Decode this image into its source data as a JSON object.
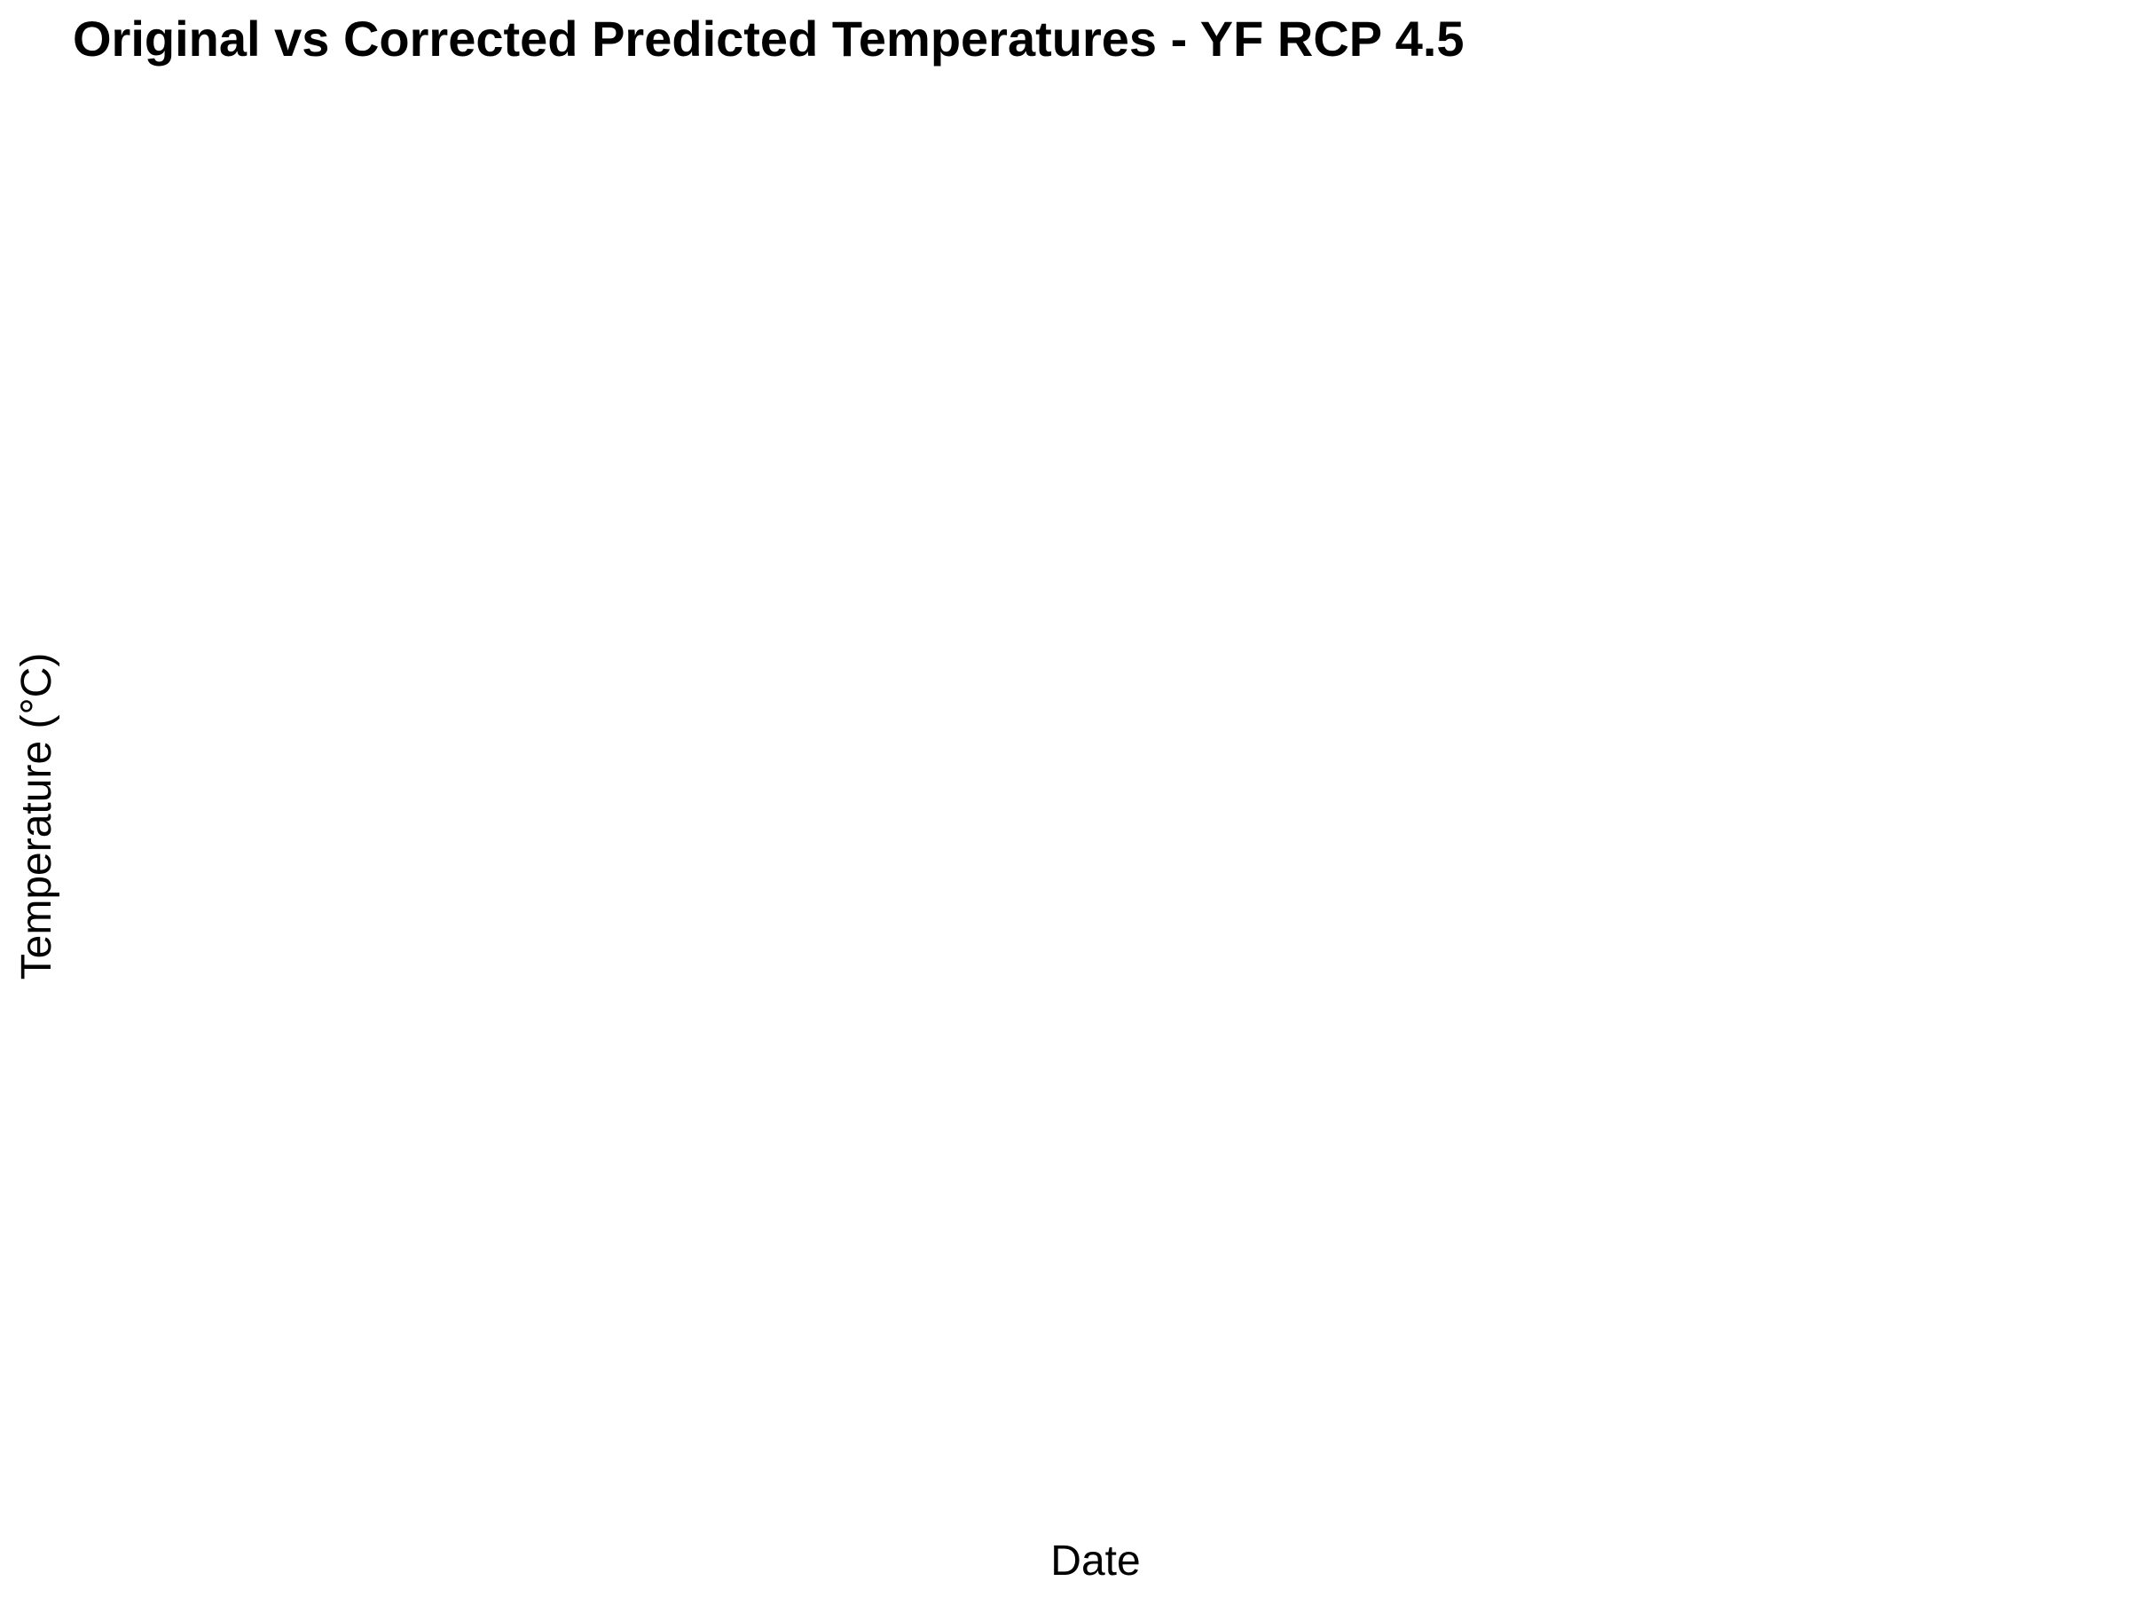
{
  "chart_data": {
    "type": "line",
    "title": "Original vs Corrected Predicted Temperatures - YF RCP 4.5",
    "xlabel": "Date",
    "ylabel": "Temperature (°C)",
    "series": [],
    "grid": false,
    "legend": "none"
  }
}
